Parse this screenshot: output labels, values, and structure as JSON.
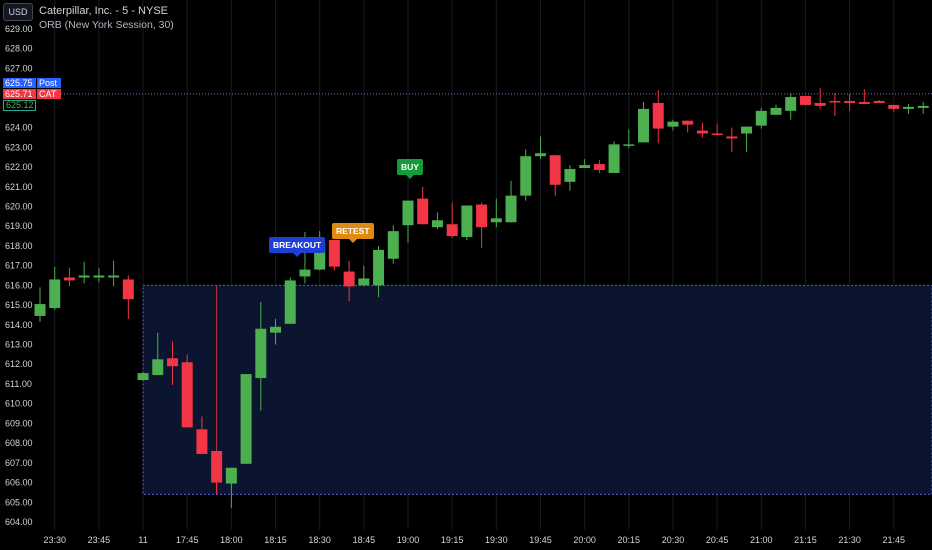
{
  "header": {
    "title": "Caterpillar, Inc. - 5 - NYSE",
    "indicator": "ORB (New York Session, 30)",
    "currency_button": "USD"
  },
  "price_badges": {
    "post": {
      "value": "625.75",
      "label": "Post",
      "color": "#2962ff"
    },
    "cat": {
      "value": "625.71",
      "label": "CAT",
      "color": "#f23645"
    },
    "last": {
      "value": "625.12",
      "color": "#4caf50"
    }
  },
  "signals": {
    "breakout": "BREAKOUT",
    "retest": "RETEST",
    "buy": "BUY"
  },
  "colors": {
    "up": "#4caf50",
    "down": "#f23645",
    "orb_fill": "#0b1530",
    "orb_border": "#5a5fe0",
    "price_line": "#7a6fd6",
    "marker_line": "#c2343f"
  },
  "chart_data": {
    "type": "candlestick",
    "title": "Caterpillar, Inc. - 5 - NYSE",
    "ylim": [
      603.5,
      629.5
    ],
    "y_ticks": [
      "604.00",
      "605.00",
      "606.00",
      "607.00",
      "608.00",
      "609.00",
      "610.00",
      "611.00",
      "612.00",
      "613.00",
      "614.00",
      "615.00",
      "616.00",
      "617.00",
      "618.00",
      "619.00",
      "620.00",
      "621.00",
      "622.00",
      "623.00",
      "624.00",
      "627.00",
      "628.00",
      "629.00"
    ],
    "x_ticks": [
      {
        "label": "23:30",
        "index": 1
      },
      {
        "label": "23:45",
        "index": 4
      },
      {
        "label": "11",
        "index": 7
      },
      {
        "label": "17:45",
        "index": 10
      },
      {
        "label": "18:00",
        "index": 13
      },
      {
        "label": "18:15",
        "index": 16
      },
      {
        "label": "18:30",
        "index": 19
      },
      {
        "label": "18:45",
        "index": 22
      },
      {
        "label": "19:00",
        "index": 25
      },
      {
        "label": "19:15",
        "index": 28
      },
      {
        "label": "19:30",
        "index": 31
      },
      {
        "label": "19:45",
        "index": 34
      },
      {
        "label": "20:00",
        "index": 37
      },
      {
        "label": "20:15",
        "index": 40
      },
      {
        "label": "20:30",
        "index": 43
      },
      {
        "label": "20:45",
        "index": 46
      },
      {
        "label": "21:00",
        "index": 49
      },
      {
        "label": "21:15",
        "index": 52
      },
      {
        "label": "21:30",
        "index": 55
      },
      {
        "label": "21:45",
        "index": 58
      }
    ],
    "candles_ohlc": [
      [
        614.45,
        615.9,
        614.15,
        615.05
      ],
      [
        614.85,
        616.95,
        614.75,
        616.3
      ],
      [
        616.4,
        616.9,
        615.95,
        616.25
      ],
      [
        616.4,
        617.2,
        616.1,
        616.5
      ],
      [
        616.4,
        616.9,
        616.15,
        616.5
      ],
      [
        616.4,
        617.25,
        615.95,
        616.5
      ],
      [
        616.3,
        616.5,
        614.3,
        615.3
      ],
      [
        611.2,
        611.6,
        611.15,
        611.55
      ],
      [
        611.45,
        613.6,
        611.45,
        612.25
      ],
      [
        612.3,
        613.15,
        610.95,
        611.9
      ],
      [
        612.1,
        612.5,
        608.8,
        608.8
      ],
      [
        608.7,
        609.35,
        607.45,
        607.45
      ],
      [
        607.6,
        607.6,
        605.4,
        606.0
      ],
      [
        605.95,
        606.75,
        604.7,
        606.75
      ],
      [
        606.95,
        611.5,
        606.95,
        611.5
      ],
      [
        611.3,
        615.15,
        609.65,
        613.8
      ],
      [
        613.6,
        614.3,
        613.0,
        613.9
      ],
      [
        614.05,
        616.4,
        614.05,
        616.25
      ],
      [
        616.45,
        618.7,
        616.1,
        616.8
      ],
      [
        616.8,
        618.75,
        616.75,
        618.15
      ],
      [
        618.3,
        618.3,
        616.75,
        616.95
      ],
      [
        616.7,
        617.25,
        615.2,
        615.95
      ],
      [
        616.0,
        617.0,
        615.95,
        616.35
      ],
      [
        616.0,
        618.0,
        615.4,
        617.8
      ],
      [
        617.35,
        619.05,
        617.1,
        618.75
      ],
      [
        619.05,
        620.3,
        618.15,
        620.3
      ],
      [
        620.4,
        621.0,
        619.1,
        619.1
      ],
      [
        618.95,
        619.7,
        618.85,
        619.3
      ],
      [
        619.1,
        620.2,
        618.4,
        618.5
      ],
      [
        618.45,
        620.05,
        618.3,
        620.05
      ],
      [
        620.1,
        620.2,
        617.9,
        618.95
      ],
      [
        619.2,
        620.4,
        618.95,
        619.4
      ],
      [
        619.2,
        621.3,
        619.2,
        620.55
      ],
      [
        620.55,
        622.9,
        620.3,
        622.55
      ],
      [
        622.55,
        623.55,
        622.4,
        622.7
      ],
      [
        622.6,
        622.6,
        620.55,
        621.1
      ],
      [
        621.25,
        622.1,
        620.8,
        621.9
      ],
      [
        621.95,
        622.4,
        621.95,
        622.1
      ],
      [
        622.15,
        622.35,
        621.7,
        621.85
      ],
      [
        621.7,
        623.3,
        621.7,
        623.15
      ],
      [
        623.1,
        623.9,
        622.95,
        623.15
      ],
      [
        623.25,
        625.3,
        623.25,
        624.95
      ],
      [
        625.25,
        625.9,
        623.2,
        623.95
      ],
      [
        624.05,
        624.4,
        623.85,
        624.3
      ],
      [
        624.35,
        624.35,
        623.75,
        624.15
      ],
      [
        623.85,
        624.25,
        623.5,
        623.7
      ],
      [
        623.7,
        624.2,
        623.6,
        623.65
      ],
      [
        623.55,
        624.0,
        622.75,
        623.45
      ],
      [
        623.7,
        624.05,
        622.75,
        624.05
      ],
      [
        624.1,
        625.0,
        623.95,
        624.85
      ],
      [
        624.65,
        625.15,
        624.65,
        625.0
      ],
      [
        624.85,
        625.75,
        624.4,
        625.55
      ],
      [
        625.6,
        625.6,
        625.15,
        625.15
      ],
      [
        625.25,
        626.0,
        624.95,
        625.1
      ],
      [
        625.35,
        625.75,
        624.6,
        625.3
      ],
      [
        625.35,
        625.7,
        624.85,
        625.25
      ],
      [
        625.3,
        625.95,
        625.2,
        625.2
      ],
      [
        625.35,
        625.4,
        625.25,
        625.25
      ],
      [
        625.15,
        625.15,
        624.8,
        624.95
      ],
      [
        624.95,
        625.2,
        624.7,
        625.05
      ],
      [
        625.0,
        625.3,
        624.7,
        625.1
      ]
    ],
    "orb_range": {
      "start_index": 7,
      "high": 616.0,
      "low": 605.4
    },
    "price_line": 625.71,
    "marker_line": {
      "index": 12,
      "from": 605.4,
      "to": 616.0
    },
    "signal_points": [
      {
        "label": "BREAKOUT",
        "index": 17
      },
      {
        "label": "RETEST",
        "index": 21
      },
      {
        "label": "BUY",
        "index": 25
      }
    ],
    "grid": "vertical"
  }
}
